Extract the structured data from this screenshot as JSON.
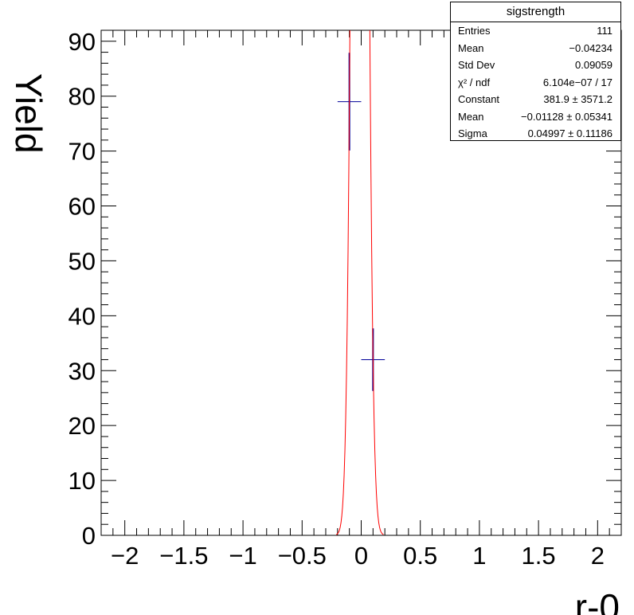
{
  "chart_data": {
    "type": "histogram",
    "title": "",
    "xlabel": "r-0",
    "ylabel": "Yield",
    "xlim": [
      -2.2,
      2.2
    ],
    "ylim": [
      0,
      92
    ],
    "x_ticks": [
      -2,
      -1.5,
      -1,
      -0.5,
      0,
      0.5,
      1,
      1.5,
      2
    ],
    "x_tick_labels": [
      "−2",
      "−1.5",
      "−1",
      "−0.5",
      "0",
      "0.5",
      "1",
      "1.5",
      "2"
    ],
    "y_ticks": [
      0,
      10,
      20,
      30,
      40,
      50,
      60,
      70,
      80,
      90
    ],
    "y_tick_labels": [
      "0",
      "10",
      "20",
      "30",
      "40",
      "50",
      "60",
      "70",
      "80",
      "90"
    ],
    "points": [
      {
        "x": -0.1,
        "y": 79,
        "xerr": 0.1,
        "yerr": 8.9
      },
      {
        "x": 0.1,
        "y": 32,
        "xerr": 0.1,
        "yerr": 5.7
      }
    ],
    "fit": {
      "type": "gaus",
      "constant": 381.9,
      "mean": -0.01128,
      "sigma": 0.04997,
      "color": "#ff0000"
    },
    "marker_color": "#000099",
    "grid": false
  },
  "stats": {
    "title": "sigstrength",
    "rows": [
      {
        "name": "Entries",
        "value": "111"
      },
      {
        "name": "Mean",
        "value": "−0.04234"
      },
      {
        "name": "Std Dev",
        "value": "0.09059"
      },
      {
        "name": "χ² / ndf",
        "value": "6.104e−07 / 17"
      },
      {
        "name": "Constant",
        "value": "381.9 ± 3571.2"
      },
      {
        "name": "Mean",
        "value": "−0.01128 ± 0.05341"
      },
      {
        "name": "Sigma",
        "value": "0.04997 ± 0.11186"
      }
    ]
  }
}
